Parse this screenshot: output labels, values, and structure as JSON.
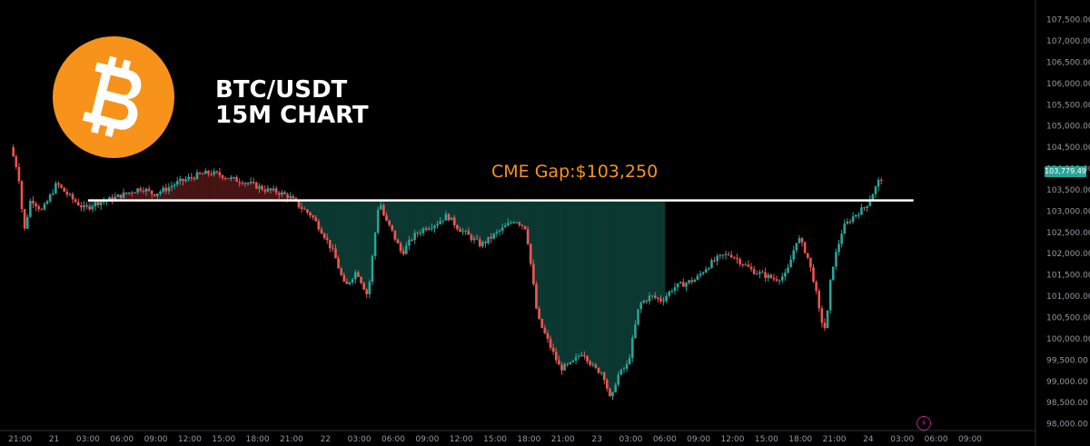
{
  "header": {
    "pair": "BTC/USDT",
    "timeframe_label": "15M CHART"
  },
  "logo": {
    "icon": "bitcoin-logo",
    "color": "#f7931a"
  },
  "gap": {
    "label": "CME Gap:$103,250",
    "price": 103250,
    "color": "#f7931a"
  },
  "last_price": {
    "label": "103,779.49",
    "value": 103779.49,
    "color": "#26a69a"
  },
  "colors": {
    "up": "#26a69a",
    "down": "#ef5350",
    "fill_above": "#5c1a1a",
    "fill_below": "#0f4a40"
  },
  "chart_data": {
    "type": "candlestick",
    "title": "",
    "ylim": [
      97800,
      107800
    ],
    "y_ticks": [
      98000,
      98500,
      99000,
      99500,
      100000,
      100500,
      101000,
      101500,
      102000,
      102500,
      103000,
      103500,
      104000,
      104500,
      105000,
      105500,
      106000,
      106500,
      107000,
      107500
    ],
    "y_tick_labels": [
      "98,000.00",
      "98,500.00",
      "99,000.00",
      "99,500.00",
      "100,000.00",
      "100,500.00",
      "101,000.00",
      "101,500.00",
      "102,000.00",
      "102,500.00",
      "103,000.00",
      "103,500.00",
      "104,000.00",
      "104,500.00",
      "105,000.00",
      "105,500.00",
      "106,000.00",
      "106,500.00",
      "107,000.00",
      "107,500.00"
    ],
    "x_tick_labels": [
      "21:00",
      "21",
      "03:00",
      "06:00",
      "09:00",
      "12:00",
      "15:00",
      "18:00",
      "21:00",
      "22",
      "03:00",
      "06:00",
      "09:00",
      "12:00",
      "15:00",
      "18:00",
      "21:00",
      "23",
      "03:00",
      "06:00",
      "09:00",
      "12:00",
      "15:00",
      "18:00",
      "21:00",
      "24",
      "03:00",
      "06:00",
      "09:00"
    ],
    "x_tick_hours": [
      -3,
      0,
      3,
      6,
      9,
      12,
      15,
      18,
      21,
      24,
      27,
      30,
      33,
      36,
      39,
      42,
      45,
      48,
      51,
      54,
      57,
      60,
      63,
      66,
      69,
      72,
      75,
      78,
      81
    ],
    "hline": 103250,
    "price_path": [
      [
        -3.6,
        104500
      ],
      [
        -2.9,
        103900
      ],
      [
        -2.4,
        102500
      ],
      [
        -1.8,
        103300
      ],
      [
        -0.8,
        103000
      ],
      [
        0,
        103400
      ],
      [
        0.5,
        103650
      ],
      [
        1,
        103500
      ],
      [
        2,
        103250
      ],
      [
        3,
        103050
      ],
      [
        4,
        103200
      ],
      [
        5,
        103250
      ],
      [
        6,
        103350
      ],
      [
        7,
        103450
      ],
      [
        8,
        103550
      ],
      [
        9,
        103400
      ],
      [
        10,
        103500
      ],
      [
        11,
        103650
      ],
      [
        12,
        103750
      ],
      [
        13,
        103850
      ],
      [
        14,
        103900
      ],
      [
        15,
        103850
      ],
      [
        16,
        103750
      ],
      [
        17,
        103700
      ],
      [
        18,
        103600
      ],
      [
        19,
        103500
      ],
      [
        20,
        103450
      ],
      [
        21,
        103350
      ],
      [
        22,
        103100
      ],
      [
        23,
        102900
      ],
      [
        24,
        102500
      ],
      [
        25,
        102000
      ],
      [
        26,
        101200
      ],
      [
        27,
        101600
      ],
      [
        28,
        101000
      ],
      [
        29,
        103300
      ],
      [
        29.5,
        102800
      ],
      [
        30,
        102600
      ],
      [
        31,
        102000
      ],
      [
        32,
        102400
      ],
      [
        33,
        102600
      ],
      [
        34,
        102700
      ],
      [
        35,
        102900
      ],
      [
        36,
        102600
      ],
      [
        37,
        102400
      ],
      [
        38,
        102200
      ],
      [
        39,
        102400
      ],
      [
        40,
        102600
      ],
      [
        41,
        102800
      ],
      [
        42,
        102600
      ],
      [
        43,
        100500
      ],
      [
        44,
        99900
      ],
      [
        45,
        99300
      ],
      [
        46,
        99400
      ],
      [
        47,
        99700
      ],
      [
        48,
        99300
      ],
      [
        48.8,
        99200
      ],
      [
        49.5,
        98500
      ],
      [
        50,
        99100
      ],
      [
        51,
        99400
      ],
      [
        52,
        100800
      ],
      [
        53,
        101000
      ],
      [
        54,
        100900
      ],
      [
        55,
        101200
      ],
      [
        56,
        101300
      ],
      [
        57,
        101400
      ],
      [
        58,
        101700
      ],
      [
        59,
        101900
      ],
      [
        60,
        102000
      ],
      [
        61,
        101800
      ],
      [
        62,
        101600
      ],
      [
        63,
        101500
      ],
      [
        64,
        101400
      ],
      [
        65,
        101500
      ],
      [
        66,
        102400
      ],
      [
        66.8,
        102000
      ],
      [
        67.5,
        101300
      ],
      [
        68,
        100500
      ],
      [
        68.5,
        100200
      ],
      [
        69,
        101600
      ],
      [
        70,
        102600
      ],
      [
        71,
        102900
      ],
      [
        72,
        103100
      ],
      [
        73,
        103600
      ],
      [
        73.3,
        103780
      ]
    ]
  }
}
